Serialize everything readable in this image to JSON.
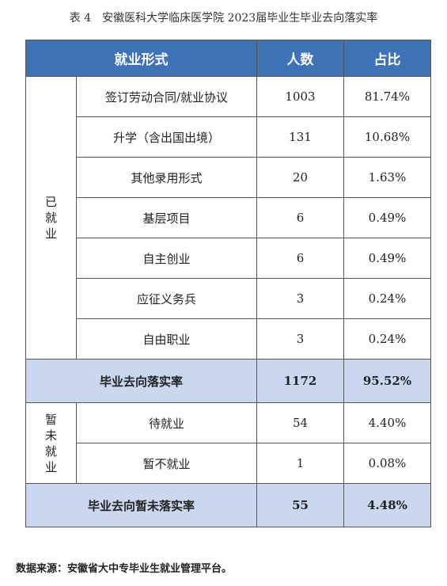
{
  "caption": "表 4　安徽医科大学临床医学院 2023届毕业生毕业去向落实率",
  "table": {
    "headers": [
      "就业形式",
      "人数",
      "占比"
    ],
    "group_employed": "已就业",
    "employed_rows": [
      {
        "form": "签订劳动合同/就业协议",
        "count": "1003",
        "ratio": "81.74%"
      },
      {
        "form": "升学（含出国出境）",
        "count": "131",
        "ratio": "10.68%"
      },
      {
        "form": "其他录用形式",
        "count": "20",
        "ratio": "1.63%"
      },
      {
        "form": "基层项目",
        "count": "6",
        "ratio": "0.49%"
      },
      {
        "form": "自主创业",
        "count": "6",
        "ratio": "0.49%"
      },
      {
        "form": "应征义务兵",
        "count": "3",
        "ratio": "0.24%"
      },
      {
        "form": "自由职业",
        "count": "3",
        "ratio": "0.24%"
      }
    ],
    "employed_total": {
      "label": "毕业去向落实率",
      "count": "1172",
      "ratio": "95.52%"
    },
    "group_unemployed": "暂未就业",
    "unemployed_rows": [
      {
        "form": "待就业",
        "count": "54",
        "ratio": "4.40%"
      },
      {
        "form": "暂不就业",
        "count": "1",
        "ratio": "0.08%"
      }
    ],
    "unemployed_total": {
      "label": "毕业去向暂未落实率",
      "count": "55",
      "ratio": "4.48%"
    }
  },
  "footnote": "数据来源：安徽省大中专毕业生就业管理平台。",
  "colors": {
    "header_bg": "#3e73b8",
    "total_bg": "#c9d8ee"
  }
}
